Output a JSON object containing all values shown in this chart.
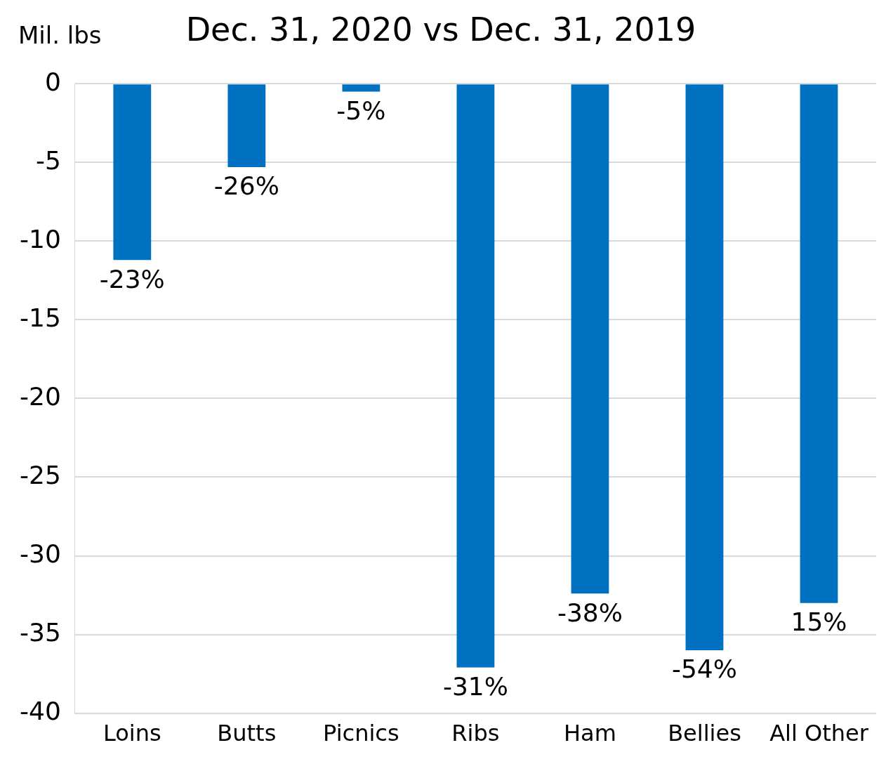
{
  "chart_data": {
    "type": "bar",
    "title": "Dec. 31, 2020 vs Dec. 31, 2019",
    "ylabel": "Mil. lbs",
    "categories": [
      "Loins",
      "Butts",
      "Picnics",
      "Ribs",
      "Ham",
      "Bellies",
      "All Other"
    ],
    "values": [
      -11.2,
      -5.3,
      -0.5,
      -37.1,
      -32.4,
      -36,
      -33
    ],
    "annotations": [
      {
        "text": "-23%",
        "x": "Loins",
        "y": -11.2
      },
      {
        "text": "-26%",
        "x": "Butts",
        "y": -5.3
      },
      {
        "text": "-5%",
        "x": "Picnics",
        "y": -0.5
      },
      {
        "text": "-31%",
        "x": "Ribs",
        "y": -37.1
      },
      {
        "text": "-38%",
        "x": "Ham",
        "y": -32.4
      },
      {
        "text": "-54%",
        "x": "Bellies",
        "y": -36
      },
      {
        "text": "15%",
        "x": "All Other",
        "y": -33
      }
    ],
    "color": "#0070c0",
    "ylim": [
      -40,
      0
    ],
    "yticks": [
      -40,
      -35,
      -30,
      -25,
      -20,
      -15,
      -10,
      -5,
      0
    ],
    "grid": "y",
    "legend": false
  }
}
